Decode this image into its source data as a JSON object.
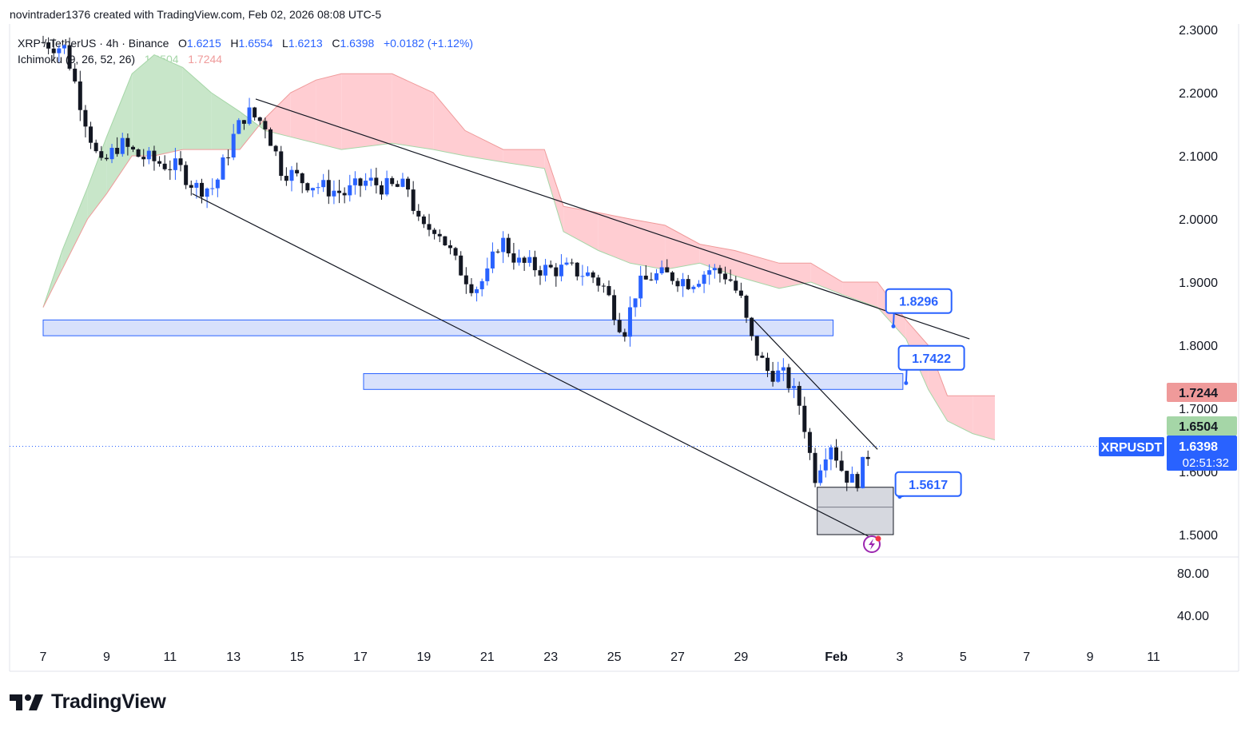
{
  "header": {
    "attribution": "novintrader1376 created with TradingView.com, Feb 02, 2026 08:08 UTC-5"
  },
  "legend": {
    "symbol": "XRP / TetherUS · 4h · Binance",
    "o_label": "O",
    "o": "1.6215",
    "h_label": "H",
    "h": "1.6554",
    "l_label": "L",
    "l": "1.6213",
    "c_label": "C",
    "c": "1.6398",
    "change": "+0.0182 (+1.12%)",
    "indicator": "Ichimoku (9, 26, 52, 26)",
    "ind_val1": "1.6504",
    "ind_val2": "1.7244"
  },
  "branding": {
    "logo_text": "TradingView"
  },
  "colors": {
    "up": "#2962ff",
    "down": "#131722",
    "cloud_green": "#c8e6c9",
    "cloud_red": "#ffcdd2",
    "zone_fill": "#d1dcfb",
    "zone_stroke": "#2962ff",
    "badge_red": "#ef9a9a",
    "badge_green": "#a5d6a7",
    "price_blue": "#2962ff"
  },
  "chart_data": {
    "type": "candlestick",
    "symbol": "XRPUSDT",
    "timeframe": "4h",
    "y_axis": {
      "min": 1.5,
      "max": 2.3,
      "ticks": [
        "2.3000",
        "2.2000",
        "2.1000",
        "2.0000",
        "1.9000",
        "1.8000",
        "1.7000",
        "1.6000",
        "1.5000"
      ]
    },
    "sub_axis": {
      "ticks": [
        "80.00",
        "40.00"
      ]
    },
    "x_axis": {
      "start_day": 7,
      "end_day": 42,
      "ticks": [
        {
          "day": 7,
          "label": "7"
        },
        {
          "day": 9,
          "label": "9"
        },
        {
          "day": 11,
          "label": "11"
        },
        {
          "day": 13,
          "label": "13"
        },
        {
          "day": 15,
          "label": "15"
        },
        {
          "day": 17,
          "label": "17"
        },
        {
          "day": 19,
          "label": "19"
        },
        {
          "day": 21,
          "label": "21"
        },
        {
          "day": 23,
          "label": "23"
        },
        {
          "day": 25,
          "label": "25"
        },
        {
          "day": 27,
          "label": "27"
        },
        {
          "day": 29,
          "label": "29"
        },
        {
          "day": 32,
          "label": "Feb"
        },
        {
          "day": 34,
          "label": "3"
        },
        {
          "day": 36,
          "label": "5"
        },
        {
          "day": 38,
          "label": "7"
        },
        {
          "day": 40,
          "label": "9"
        },
        {
          "day": 42,
          "label": "11"
        }
      ]
    },
    "candle_anchors": [
      [
        7.0,
        2.28
      ],
      [
        7.7,
        2.27
      ],
      [
        8.2,
        2.18
      ],
      [
        8.8,
        2.08
      ],
      [
        9.4,
        2.12
      ],
      [
        10.0,
        2.1
      ],
      [
        10.6,
        2.09
      ],
      [
        11.3,
        2.08
      ],
      [
        11.8,
        2.05
      ],
      [
        12.4,
        2.05
      ],
      [
        13.0,
        2.13
      ],
      [
        13.4,
        2.17
      ],
      [
        14.0,
        2.15
      ],
      [
        14.5,
        2.08
      ],
      [
        15.2,
        2.06
      ],
      [
        15.8,
        2.05
      ],
      [
        16.5,
        2.04
      ],
      [
        17.2,
        2.06
      ],
      [
        17.8,
        2.05
      ],
      [
        18.5,
        2.05
      ],
      [
        18.9,
        1.98
      ],
      [
        19.4,
        1.99
      ],
      [
        20.0,
        1.93
      ],
      [
        20.6,
        1.89
      ],
      [
        21.0,
        1.91
      ],
      [
        21.4,
        1.97
      ],
      [
        22.0,
        1.93
      ],
      [
        22.8,
        1.92
      ],
      [
        23.6,
        1.92
      ],
      [
        24.3,
        1.91
      ],
      [
        24.7,
        1.89
      ],
      [
        25.3,
        1.82
      ],
      [
        25.7,
        1.89
      ],
      [
        26.2,
        1.91
      ],
      [
        26.8,
        1.91
      ],
      [
        27.4,
        1.9
      ],
      [
        28.0,
        1.92
      ],
      [
        28.6,
        1.91
      ],
      [
        29.0,
        1.87
      ],
      [
        29.3,
        1.81
      ],
      [
        29.8,
        1.76
      ],
      [
        30.4,
        1.75
      ],
      [
        30.9,
        1.7
      ],
      [
        31.3,
        1.59
      ],
      [
        31.8,
        1.65
      ],
      [
        32.2,
        1.6
      ],
      [
        32.6,
        1.58
      ],
      [
        33.1,
        1.64
      ]
    ],
    "ichimoku_cloud_anchors": [
      [
        7.0,
        1.86,
        1.86
      ],
      [
        7.6,
        1.95,
        1.92
      ],
      [
        8.4,
        2.05,
        2.0
      ],
      [
        9.0,
        2.13,
        2.04
      ],
      [
        9.8,
        2.23,
        2.1
      ],
      [
        10.5,
        2.26,
        2.1
      ],
      [
        11.4,
        2.24,
        2.11
      ],
      [
        12.3,
        2.2,
        2.11
      ],
      [
        13.2,
        2.17,
        2.11
      ],
      [
        14.0,
        2.14,
        2.16
      ],
      [
        14.8,
        2.13,
        2.2
      ],
      [
        15.6,
        2.12,
        2.22
      ],
      [
        16.4,
        2.11,
        2.23
      ],
      [
        18.0,
        2.12,
        2.23
      ],
      [
        19.3,
        2.11,
        2.2
      ],
      [
        20.3,
        2.1,
        2.14
      ],
      [
        21.5,
        2.09,
        2.11
      ],
      [
        22.8,
        2.08,
        2.11
      ],
      [
        23.4,
        1.98,
        2.02
      ],
      [
        24.5,
        1.95,
        2.01
      ],
      [
        25.5,
        1.93,
        2.0
      ],
      [
        26.6,
        1.92,
        1.99
      ],
      [
        27.7,
        1.93,
        1.96
      ],
      [
        28.8,
        1.91,
        1.95
      ],
      [
        30.2,
        1.89,
        1.93
      ],
      [
        31.2,
        1.9,
        1.93
      ],
      [
        32.2,
        1.88,
        1.9
      ],
      [
        33.3,
        1.86,
        1.9
      ],
      [
        34.2,
        1.81,
        1.84
      ],
      [
        34.9,
        1.73,
        1.8
      ],
      [
        35.5,
        1.68,
        1.72
      ],
      [
        36.3,
        1.66,
        1.72
      ],
      [
        37.0,
        1.65,
        1.72
      ]
    ],
    "zones": [
      {
        "name": "support-zone-1",
        "x0": 7.0,
        "x1": 31.9,
        "y0": 1.815,
        "y1": 1.84
      },
      {
        "name": "support-zone-2",
        "x0": 17.1,
        "x1": 34.1,
        "y0": 1.73,
        "y1": 1.755
      },
      {
        "name": "gray-box",
        "x0": 31.4,
        "x1": 33.8,
        "y0": 1.5,
        "y1": 1.575
      }
    ],
    "trendlines": [
      {
        "name": "upper-trendline",
        "x0": 13.7,
        "y0": 2.19,
        "x1": 36.2,
        "y1": 1.81
      },
      {
        "name": "lower-trendline",
        "x0": 11.7,
        "y0": 2.04,
        "x1": 33.3,
        "y1": 1.49
      },
      {
        "name": "short-trendline",
        "x0": 29.4,
        "y0": 1.84,
        "x1": 33.3,
        "y1": 1.635
      }
    ],
    "callouts": [
      {
        "label": "1.8296",
        "box_day": 34.6,
        "box_price": 1.87,
        "tip_day": 33.8,
        "tip_price": 1.83
      },
      {
        "label": "1.7422",
        "box_day": 35.0,
        "box_price": 1.78,
        "tip_day": 34.2,
        "tip_price": 1.74
      },
      {
        "label": "1.5617",
        "box_day": 34.9,
        "box_price": 1.58,
        "tip_day": 34.0,
        "tip_price": 1.56
      }
    ],
    "price_badges": {
      "cloud_top": "1.7244",
      "cloud_bottom": "1.6504",
      "ticker": "XRPUSDT",
      "last": "1.6398",
      "countdown": "02:51:32"
    },
    "last_price": 1.6398
  }
}
